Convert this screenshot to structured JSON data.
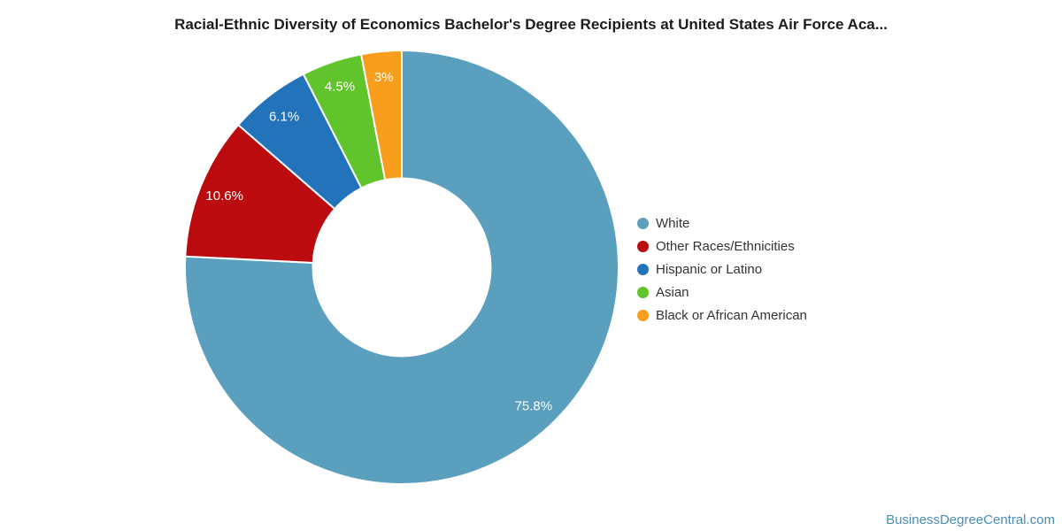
{
  "header": {
    "title": "Racial-Ethnic Diversity of Economics Bachelor's Degree Recipients at United States Air Force Aca..."
  },
  "footer": {
    "link_text": "BusinessDegreeCentral.com",
    "link_color": "#4A8DB7"
  },
  "chart_data": {
    "type": "pie",
    "donut": true,
    "title": "Racial-Ethnic Diversity of Economics Bachelor's Degree Recipients at United States Air Force Aca...",
    "start_angle_deg": 0,
    "direction": "clockwise",
    "inner_radius_ratio": 0.41,
    "legend_position": "right",
    "background_color": "#ffffff",
    "slice_label_color": "#ffffff",
    "slices": [
      {
        "label": "White",
        "value": 75.8,
        "display": "75.8%",
        "color": "#5A9FBD"
      },
      {
        "label": "Other Races/Ethnicities",
        "value": 10.6,
        "display": "10.6%",
        "color": "#BC0B0E"
      },
      {
        "label": "Hispanic or Latino",
        "value": 6.1,
        "display": "6.1%",
        "color": "#2273B9"
      },
      {
        "label": "Asian",
        "value": 4.5,
        "display": "4.5%",
        "color": "#61C42D"
      },
      {
        "label": "Black or African American",
        "value": 3.0,
        "display": "3%",
        "color": "#F99D1C"
      }
    ]
  }
}
